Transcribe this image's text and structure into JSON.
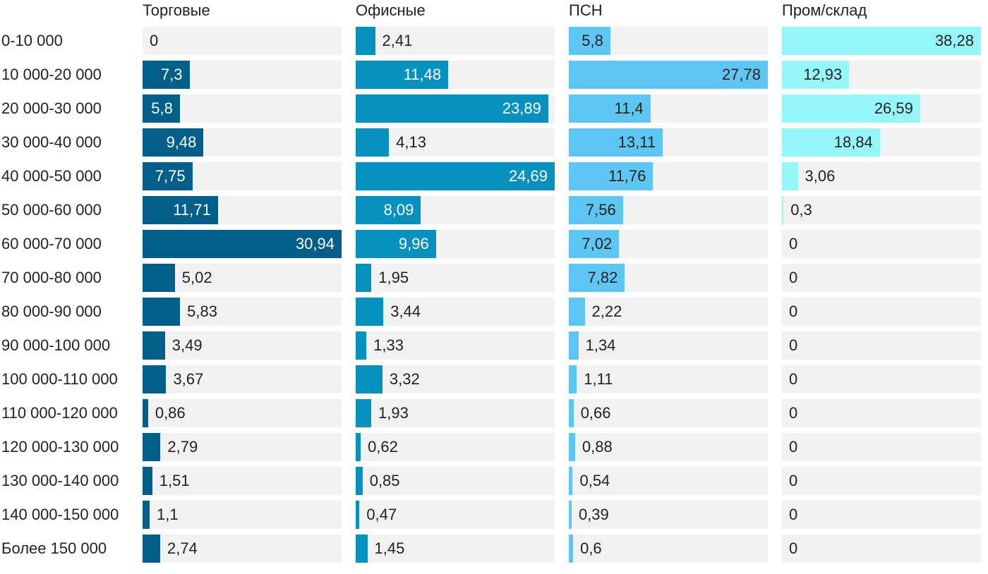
{
  "chart_data": {
    "type": "bar",
    "orientation": "horizontal",
    "layout": "small-multiples",
    "title": "",
    "xlabel": "",
    "ylabel": "",
    "grid": false,
    "legend": "none",
    "categories": [
      "0-10 000",
      "10 000-20 000",
      "20 000-30 000",
      "30 000-40 000",
      "40 000-50 000",
      "50 000-60 000",
      "60 000-70 000",
      "70 000-80 000",
      "80 000-90 000",
      "90 000-100 000",
      "100 000-110 000",
      "110 000-120 000",
      "120 000-130 000",
      "130 000-140 000",
      "140 000-150 000",
      "Более 150 000"
    ],
    "series": [
      {
        "name": "Торговые",
        "color": "#015f8a",
        "label_inside_color": "#ffffff",
        "xlim": [
          0,
          30.94
        ],
        "values": [
          0,
          7.3,
          5.8,
          9.48,
          7.75,
          11.71,
          30.94,
          5.02,
          5.83,
          3.49,
          3.67,
          0.86,
          2.79,
          1.51,
          1.1,
          2.74
        ],
        "labels": [
          "0",
          "7,3",
          "5,8",
          "9,48",
          "7,75",
          "11,71",
          "30,94",
          "5,02",
          "5,83",
          "3,49",
          "3,67",
          "0,86",
          "2,79",
          "1,51",
          "1,1",
          "2,74"
        ]
      },
      {
        "name": "Офисные",
        "color": "#0791bf",
        "label_inside_color": "#ffffff",
        "xlim": [
          0,
          24.69
        ],
        "values": [
          2.41,
          11.48,
          23.89,
          4.13,
          24.69,
          8.09,
          9.96,
          1.95,
          3.44,
          1.33,
          3.32,
          1.93,
          0.62,
          0.85,
          0.47,
          1.45
        ],
        "labels": [
          "2,41",
          "11,48",
          "23,89",
          "4,13",
          "24,69",
          "8,09",
          "9,96",
          "1,95",
          "3,44",
          "1,33",
          "3,32",
          "1,93",
          "0,62",
          "0,85",
          "0,47",
          "1,45"
        ]
      },
      {
        "name": "ПСН",
        "color": "#5ec6f2",
        "label_inside_color": "#222222",
        "xlim": [
          0,
          27.78
        ],
        "values": [
          5.8,
          27.78,
          11.4,
          13.11,
          11.76,
          7.56,
          7.02,
          7.82,
          2.22,
          1.34,
          1.11,
          0.66,
          0.88,
          0.54,
          0.39,
          0.6
        ],
        "labels": [
          "5,8",
          "27,78",
          "11,4",
          "13,11",
          "11,76",
          "7,56",
          "7,02",
          "7,82",
          "2,22",
          "1,34",
          "1,11",
          "0,66",
          "0,88",
          "0,54",
          "0,39",
          "0,6"
        ]
      },
      {
        "name": "Пром/склад",
        "color": "#96f7fb",
        "label_inside_color": "#222222",
        "xlim": [
          0,
          38.28
        ],
        "values": [
          38.28,
          12.93,
          26.59,
          18.84,
          3.06,
          0.3,
          0,
          0,
          0,
          0,
          0,
          0,
          0,
          0,
          0,
          0
        ],
        "labels": [
          "38,28",
          "12,93",
          "26,59",
          "18,84",
          "3,06",
          "0,3",
          "0",
          "0",
          "0",
          "0",
          "0",
          "0",
          "0",
          "0",
          "0",
          "0"
        ]
      }
    ]
  }
}
